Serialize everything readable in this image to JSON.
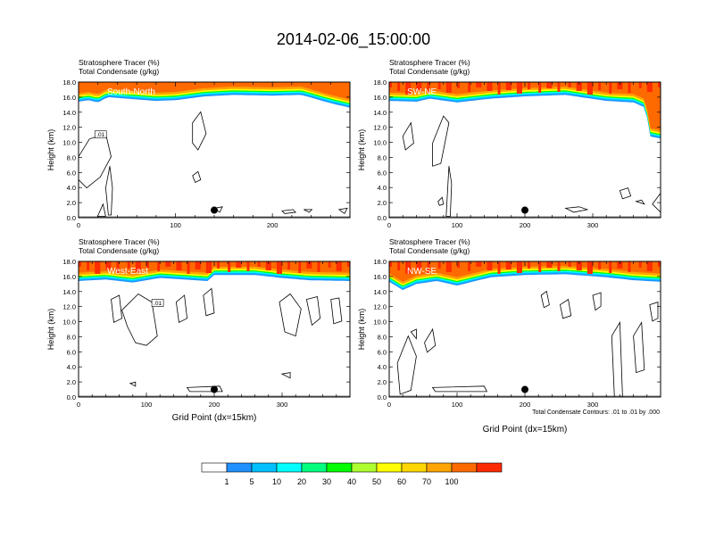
{
  "title": "2014-02-06_15:00:00",
  "field_titles": [
    "Stratosphere Tracer   (%)",
    "Total Condensate   (g/kg)"
  ],
  "ylabel": "Height (km)",
  "xlabel": "Grid Point (dx=15km)",
  "contour_note": "Total Condensate Contours: .01 to .01 by .000",
  "colorbar": {
    "labels": [
      "1",
      "5",
      "10",
      "20",
      "30",
      "40",
      "50",
      "60",
      "70",
      "100"
    ],
    "colors": [
      "#ffffff",
      "#1e90ff",
      "#00bfff",
      "#00ffff",
      "#00ff7f",
      "#00ff00",
      "#adff2f",
      "#ffff00",
      "#ffd700",
      "#ffa500",
      "#ff6a00",
      "#ff2a00"
    ]
  },
  "chart_data": [
    {
      "type": "heatmap",
      "panel_label": "South-North",
      "contour_label": ".01",
      "xlim": [
        0,
        280
      ],
      "xticks": [
        0,
        20,
        40,
        60,
        80,
        100,
        120,
        140,
        160,
        180,
        200,
        220,
        240,
        260
      ],
      "xticklabels": [
        "0",
        "",
        "",
        "",
        "",
        "100",
        "",
        "",
        "",
        "",
        "200",
        "",
        "",
        ""
      ],
      "ylim": [
        0,
        18
      ],
      "yticks": [
        0,
        2,
        4,
        6,
        8,
        10,
        12,
        14,
        16,
        18
      ],
      "yticklabels": [
        "0.0",
        "2.0",
        "4.0",
        "6.0",
        "8.0",
        "10.0",
        "12.0",
        "14.0",
        "16.0",
        "18.0"
      ],
      "marker_x": 140,
      "marker_y": 1.0,
      "tracer_bottom_km": [
        [
          0,
          15.4
        ],
        [
          10,
          15.6
        ],
        [
          20,
          15.3
        ],
        [
          30,
          16.0
        ],
        [
          50,
          15.8
        ],
        [
          80,
          15.5
        ],
        [
          100,
          15.6
        ],
        [
          130,
          16.1
        ],
        [
          160,
          16.3
        ],
        [
          200,
          16.2
        ],
        [
          230,
          16.3
        ],
        [
          260,
          15.2
        ],
        [
          280,
          14.6
        ]
      ]
    },
    {
      "type": "heatmap",
      "panel_label": "SW-NE",
      "xlim": [
        0,
        400
      ],
      "xticks": [
        0,
        20,
        40,
        60,
        80,
        100,
        120,
        140,
        160,
        180,
        200,
        220,
        240,
        260,
        280,
        300,
        320,
        340,
        360,
        380
      ],
      "xticklabels": [
        "0",
        "",
        "",
        "",
        "",
        "100",
        "",
        "",
        "",
        "",
        "200",
        "",
        "",
        "",
        "",
        "300",
        "",
        "",
        "",
        ""
      ],
      "ylim": [
        0,
        18
      ],
      "yticks": [
        0,
        2,
        4,
        6,
        8,
        10,
        12,
        14,
        16,
        18
      ],
      "yticklabels": [
        "0.0",
        "2.0",
        "4.0",
        "6.0",
        "8.0",
        "10.0",
        "12.0",
        "14.0",
        "16.0",
        "18.0"
      ],
      "marker_x": 200,
      "marker_y": 1.0,
      "tracer_bottom_km": [
        [
          0,
          15.5
        ],
        [
          40,
          15.4
        ],
        [
          60,
          15.8
        ],
        [
          100,
          15.3
        ],
        [
          150,
          15.8
        ],
        [
          200,
          16.1
        ],
        [
          260,
          16.3
        ],
        [
          320,
          15.5
        ],
        [
          360,
          15.3
        ],
        [
          378,
          14.6
        ],
        [
          384,
          10.8
        ],
        [
          400,
          10.5
        ]
      ]
    },
    {
      "type": "heatmap",
      "panel_label": "West-East",
      "contour_label": ".01",
      "xlim": [
        0,
        400
      ],
      "xticks": [
        0,
        20,
        40,
        60,
        80,
        100,
        120,
        140,
        160,
        180,
        200,
        220,
        240,
        260,
        280,
        300,
        320,
        340,
        360,
        380
      ],
      "xticklabels": [
        "0",
        "",
        "",
        "",
        "",
        "100",
        "",
        "",
        "",
        "",
        "200",
        "",
        "",
        "",
        "",
        "300",
        "",
        "",
        "",
        ""
      ],
      "ylim": [
        0,
        18
      ],
      "yticks": [
        0,
        2,
        4,
        6,
        8,
        10,
        12,
        14,
        16,
        18
      ],
      "yticklabels": [
        "0.0",
        "2.0",
        "4.0",
        "6.0",
        "8.0",
        "10.0",
        "12.0",
        "14.0",
        "16.0",
        "18.0"
      ],
      "marker_x": 200,
      "marker_y": 1.0,
      "tracer_bottom_km": [
        [
          0,
          15.4
        ],
        [
          40,
          15.6
        ],
        [
          80,
          15.2
        ],
        [
          120,
          15.8
        ],
        [
          190,
          15.4
        ],
        [
          200,
          16.2
        ],
        [
          260,
          16.2
        ],
        [
          300,
          15.8
        ],
        [
          340,
          15.5
        ],
        [
          400,
          15.4
        ]
      ]
    },
    {
      "type": "heatmap",
      "panel_label": "NW-SE",
      "xlim": [
        0,
        400
      ],
      "xticks": [
        0,
        20,
        40,
        60,
        80,
        100,
        120,
        140,
        160,
        180,
        200,
        220,
        240,
        260,
        280,
        300,
        320,
        340,
        360,
        380
      ],
      "xticklabels": [
        "0",
        "",
        "",
        "",
        "",
        "100",
        "",
        "",
        "",
        "",
        "200",
        "",
        "",
        "",
        "",
        "300",
        "",
        "",
        "",
        ""
      ],
      "ylim": [
        0,
        18
      ],
      "yticks": [
        0,
        2,
        4,
        6,
        8,
        10,
        12,
        14,
        16,
        18
      ],
      "yticklabels": [
        "0.0",
        "2.0",
        "4.0",
        "6.0",
        "8.0",
        "10.0",
        "12.0",
        "14.0",
        "16.0",
        "18.0"
      ],
      "marker_x": 200,
      "marker_y": 1.0,
      "tracer_bottom_km": [
        [
          0,
          15.3
        ],
        [
          20,
          14.2
        ],
        [
          40,
          15.0
        ],
        [
          70,
          15.4
        ],
        [
          100,
          14.8
        ],
        [
          150,
          15.9
        ],
        [
          200,
          16.2
        ],
        [
          260,
          16.3
        ],
        [
          320,
          15.9
        ],
        [
          360,
          15.5
        ],
        [
          400,
          15.3
        ]
      ]
    }
  ]
}
